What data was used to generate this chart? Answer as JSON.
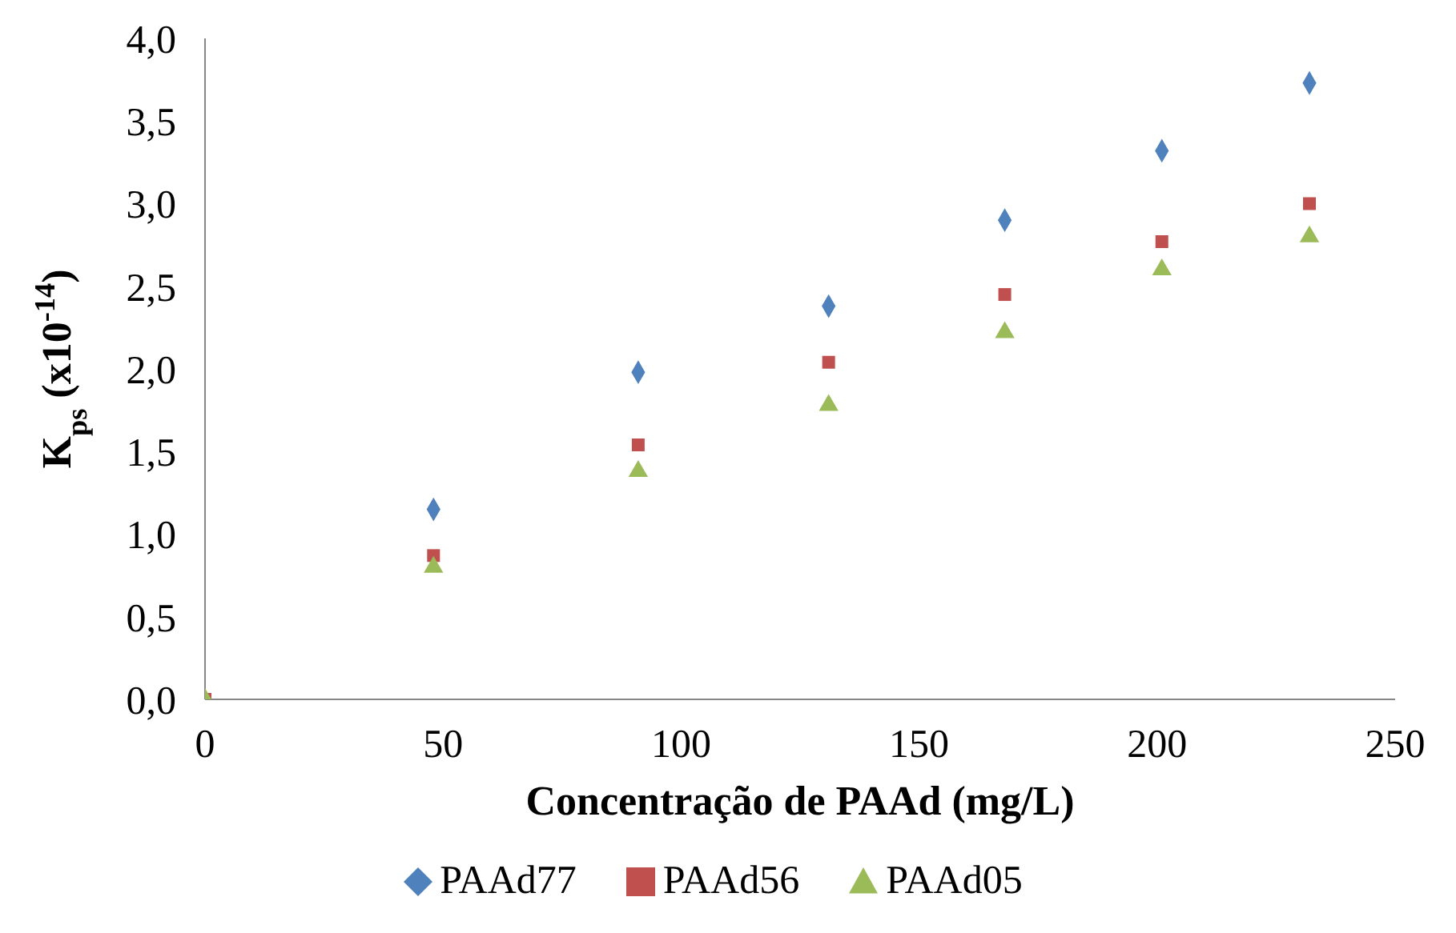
{
  "chart_data": {
    "type": "scatter",
    "xlabel": "Concentração de PAAd (mg/L)",
    "ylabel": "K$_{ps}$ (x10$^{-14}$)",
    "x": [
      0,
      48,
      91,
      131,
      168,
      201,
      232
    ],
    "series": [
      {
        "name": "PAAd77",
        "color": "#4f81bd",
        "marker": "diamond",
        "values": [
          null,
          1.15,
          1.98,
          2.38,
          2.9,
          3.32,
          3.73
        ]
      },
      {
        "name": "PAAd56",
        "color": "#c0504d",
        "marker": "square",
        "values": [
          0,
          0.87,
          1.54,
          2.04,
          2.45,
          2.77,
          3.0
        ]
      },
      {
        "name": "PAAd05",
        "color": "#9bbb59",
        "marker": "triangle",
        "values": [
          0,
          0.8,
          1.38,
          1.78,
          2.22,
          2.6,
          2.8
        ]
      }
    ],
    "xlim": [
      0,
      250
    ],
    "xticks": [
      0,
      50,
      100,
      150,
      200,
      250
    ],
    "ylim": [
      0,
      4
    ],
    "yticks": [
      {
        "value": 0,
        "label": "0,0"
      },
      {
        "value": 0.5,
        "label": "0,5"
      },
      {
        "value": 1,
        "label": "1,0"
      },
      {
        "value": 1.5,
        "label": "1,5"
      },
      {
        "value": 2,
        "label": "2,0"
      },
      {
        "value": 2.5,
        "label": "2,5"
      },
      {
        "value": 3,
        "label": "3,0"
      },
      {
        "value": 3.5,
        "label": "3,5"
      },
      {
        "value": 4,
        "label": "4,0"
      }
    ],
    "grid": false,
    "legend": "bottom"
  }
}
